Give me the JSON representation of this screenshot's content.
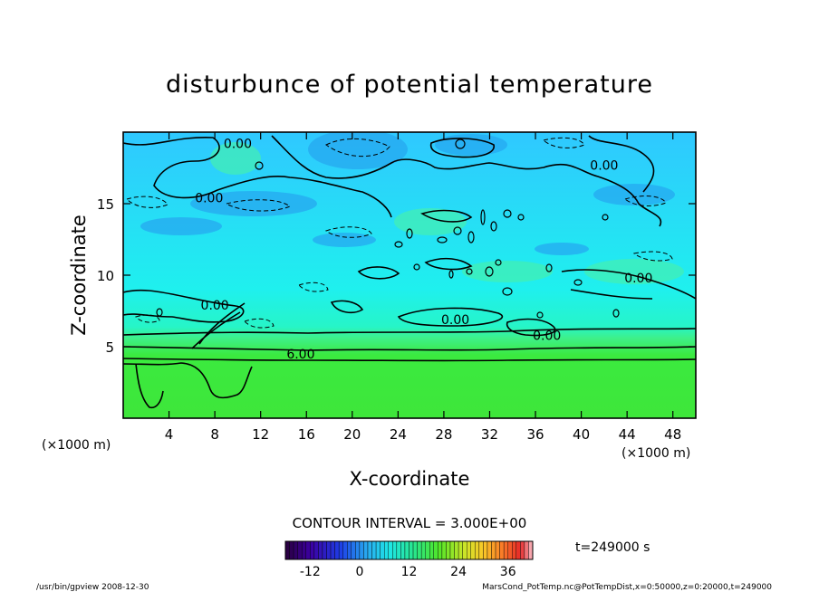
{
  "chart_data": {
    "type": "heatmap",
    "title": "disturbunce of potential temperature",
    "xlabel": "X-coordinate",
    "ylabel": "Z-coordinate",
    "x_unit_left": "(×1000 m)",
    "x_unit_right": "(×1000 m)",
    "xlim": [
      0,
      50
    ],
    "ylim": [
      0,
      20
    ],
    "x_ticks": [
      4,
      8,
      12,
      16,
      20,
      24,
      28,
      32,
      36,
      40,
      44,
      48
    ],
    "y_ticks": [
      5,
      10,
      15
    ],
    "contour_labels": [
      {
        "text": "0.00",
        "x": 10,
        "z": 19.2
      },
      {
        "text": "0.00",
        "x": 7.5,
        "z": 15.4
      },
      {
        "text": "0.00",
        "x": 42,
        "z": 17.7
      },
      {
        "text": "0.00",
        "x": 45,
        "z": 9.8
      },
      {
        "text": "0.00",
        "x": 8,
        "z": 7.9
      },
      {
        "text": "0.00",
        "x": 29,
        "z": 6.9
      },
      {
        "text": "0.00",
        "x": 37,
        "z": 5.8
      },
      {
        "text": "6.00",
        "x": 15.5,
        "z": 4.5
      }
    ],
    "contour_interval_text": "CONTOUR INTERVAL = 3.000E+00",
    "time_text": "t=249000 s",
    "colorbar": {
      "min": -18,
      "max": 42,
      "tick_values": [
        -12,
        0,
        12,
        24,
        36
      ],
      "tick_labels": [
        "-12",
        "0",
        "12",
        "24",
        "36"
      ]
    }
  },
  "footer": {
    "left": "/usr/bin/gpview   2008-12-30",
    "right": "MarsCond_PotTemp.nc@PotTempDist,x=0:50000,z=0:20000,t=249000"
  }
}
